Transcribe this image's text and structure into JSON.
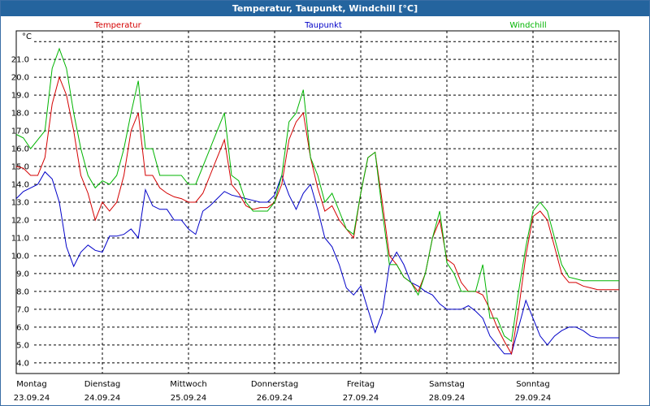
{
  "window": {
    "title": "Temperatur, Taupunkt, Windchill [°C]"
  },
  "chart_data": {
    "type": "line",
    "title": "Temperatur, Taupunkt, Windchill [°C]",
    "ylabel": "°C",
    "ylim": [
      3.4,
      22.6
    ],
    "yticks": [
      "4.0",
      "5.0",
      "6.0",
      "7.0",
      "8.0",
      "9.0",
      "10.0",
      "11.0",
      "12.0",
      "13.0",
      "14.0",
      "15.0",
      "16.0",
      "17.0",
      "18.0",
      "19.0",
      "20.0",
      "21.0"
    ],
    "xlim": [
      0,
      168
    ],
    "grid": true,
    "legend_position": "top",
    "days": [
      {
        "name": "Montag",
        "date": "23.09.24"
      },
      {
        "name": "Dienstag",
        "date": "24.09.24"
      },
      {
        "name": "Mittwoch",
        "date": "25.09.24"
      },
      {
        "name": "Donnerstag",
        "date": "26.09.24"
      },
      {
        "name": "Freitag",
        "date": "27.09.24"
      },
      {
        "name": "Samstag",
        "date": "28.09.24"
      },
      {
        "name": "Sonntag",
        "date": "29.09.24"
      }
    ],
    "series": [
      {
        "name": "Temperatur",
        "color": "#d40000",
        "x": [
          0,
          2,
          4,
          6,
          8,
          10,
          12,
          14,
          16,
          18,
          20,
          22,
          24,
          26,
          28,
          30,
          32,
          34,
          36,
          38,
          40,
          42,
          44,
          46,
          48,
          50,
          52,
          54,
          56,
          58,
          60,
          62,
          64,
          66,
          68,
          70,
          72,
          74,
          76,
          78,
          80,
          82,
          84,
          86,
          88,
          90,
          92,
          94,
          96,
          98,
          100,
          102,
          104,
          106,
          108,
          110,
          112,
          114,
          116,
          118,
          120,
          122,
          124,
          126,
          128,
          130,
          132,
          134,
          136,
          138,
          140,
          142,
          144,
          146,
          148,
          150,
          152,
          154,
          156,
          158,
          160,
          162,
          164,
          166,
          168
        ],
        "y": [
          15.0,
          14.9,
          14.5,
          14.5,
          15.5,
          18.5,
          20.0,
          19.0,
          17.0,
          14.5,
          13.5,
          12.0,
          13.0,
          12.5,
          13.0,
          14.5,
          17.0,
          18.0,
          14.5,
          14.5,
          13.8,
          13.5,
          13.3,
          13.2,
          13.0,
          13.0,
          13.5,
          14.5,
          15.5,
          16.5,
          14.0,
          13.5,
          12.8,
          12.6,
          12.7,
          12.7,
          13.0,
          14.0,
          16.5,
          17.5,
          18.0,
          15.5,
          13.8,
          12.5,
          12.8,
          12.0,
          11.5,
          11.0,
          13.5,
          15.5,
          15.8,
          13.0,
          10.0,
          9.5,
          8.8,
          8.5,
          8.0,
          9.0,
          11.0,
          12.0,
          9.8,
          9.5,
          8.5,
          8.0,
          8.0,
          7.8,
          7.0,
          6.0,
          5.2,
          4.5,
          7.0,
          10.0,
          12.2,
          12.5,
          12.0,
          10.5,
          9.0,
          8.5,
          8.5,
          8.3,
          8.2,
          8.1,
          8.1,
          8.1,
          8.1
        ]
      },
      {
        "name": "Taupunkt",
        "color": "#0000c8",
        "x": [
          0,
          2,
          4,
          6,
          8,
          10,
          12,
          14,
          16,
          18,
          20,
          22,
          24,
          26,
          28,
          30,
          32,
          34,
          36,
          38,
          40,
          42,
          44,
          46,
          48,
          50,
          52,
          54,
          56,
          58,
          60,
          62,
          64,
          66,
          68,
          70,
          72,
          74,
          76,
          78,
          80,
          82,
          84,
          86,
          88,
          90,
          92,
          94,
          96,
          98,
          100,
          102,
          104,
          106,
          108,
          110,
          112,
          114,
          116,
          118,
          120,
          122,
          124,
          126,
          128,
          130,
          132,
          134,
          136,
          138,
          140,
          142,
          144,
          146,
          148,
          150,
          152,
          154,
          156,
          158,
          160,
          162,
          164,
          166,
          168
        ],
        "y": [
          13.2,
          13.6,
          13.8,
          14.0,
          14.7,
          14.3,
          13.0,
          10.5,
          9.4,
          10.2,
          10.6,
          10.3,
          10.2,
          11.1,
          11.1,
          11.2,
          11.5,
          11.0,
          13.7,
          12.8,
          12.6,
          12.6,
          12.0,
          12.0,
          11.5,
          11.2,
          12.5,
          12.8,
          13.2,
          13.6,
          13.4,
          13.3,
          13.2,
          13.1,
          13.0,
          13.0,
          13.4,
          14.5,
          13.4,
          12.6,
          13.5,
          14.0,
          12.6,
          11.0,
          10.5,
          9.5,
          8.2,
          7.8,
          8.3,
          7.0,
          5.7,
          6.8,
          9.5,
          10.2,
          9.5,
          8.5,
          8.3,
          8.0,
          7.8,
          7.3,
          7.0,
          7.0,
          7.0,
          7.2,
          6.9,
          6.5,
          5.5,
          5.0,
          4.5,
          4.5,
          6.0,
          7.5,
          6.5,
          5.5,
          5.0,
          5.5,
          5.8,
          6.0,
          6.0,
          5.8,
          5.5,
          5.4,
          5.4,
          5.4,
          5.4
        ]
      },
      {
        "name": "Windchill",
        "color": "#00b400",
        "x": [
          0,
          2,
          4,
          6,
          8,
          10,
          12,
          14,
          16,
          18,
          20,
          22,
          24,
          26,
          28,
          30,
          32,
          34,
          36,
          38,
          40,
          42,
          44,
          46,
          48,
          50,
          52,
          54,
          56,
          58,
          60,
          62,
          64,
          66,
          68,
          70,
          72,
          74,
          76,
          78,
          80,
          82,
          84,
          86,
          88,
          90,
          92,
          94,
          96,
          98,
          100,
          102,
          104,
          106,
          108,
          110,
          112,
          114,
          116,
          118,
          120,
          122,
          124,
          126,
          128,
          130,
          132,
          134,
          136,
          138,
          140,
          142,
          144,
          146,
          148,
          150,
          152,
          154,
          156,
          158,
          160,
          162,
          164,
          166,
          168
        ],
        "y": [
          16.8,
          16.6,
          16.0,
          16.5,
          17.0,
          20.5,
          21.6,
          20.5,
          18.0,
          16.0,
          14.5,
          13.8,
          14.2,
          14.0,
          14.5,
          16.0,
          18.0,
          19.8,
          16.0,
          16.0,
          14.5,
          14.5,
          14.5,
          14.5,
          14.0,
          14.0,
          15.0,
          16.0,
          17.0,
          18.0,
          14.5,
          14.2,
          13.0,
          12.5,
          12.5,
          12.5,
          13.0,
          14.5,
          17.5,
          18.0,
          19.3,
          15.5,
          14.5,
          13.0,
          13.5,
          12.5,
          11.5,
          11.2,
          13.5,
          15.5,
          15.8,
          12.5,
          9.5,
          9.5,
          8.8,
          8.5,
          7.8,
          9.0,
          11.0,
          12.5,
          9.6,
          9.0,
          8.0,
          8.0,
          8.0,
          9.5,
          6.5,
          6.5,
          5.5,
          5.2,
          8.0,
          10.5,
          12.5,
          13.0,
          12.5,
          11.0,
          9.5,
          8.8,
          8.7,
          8.6,
          8.6,
          8.6,
          8.6,
          8.6,
          8.6
        ]
      }
    ]
  }
}
